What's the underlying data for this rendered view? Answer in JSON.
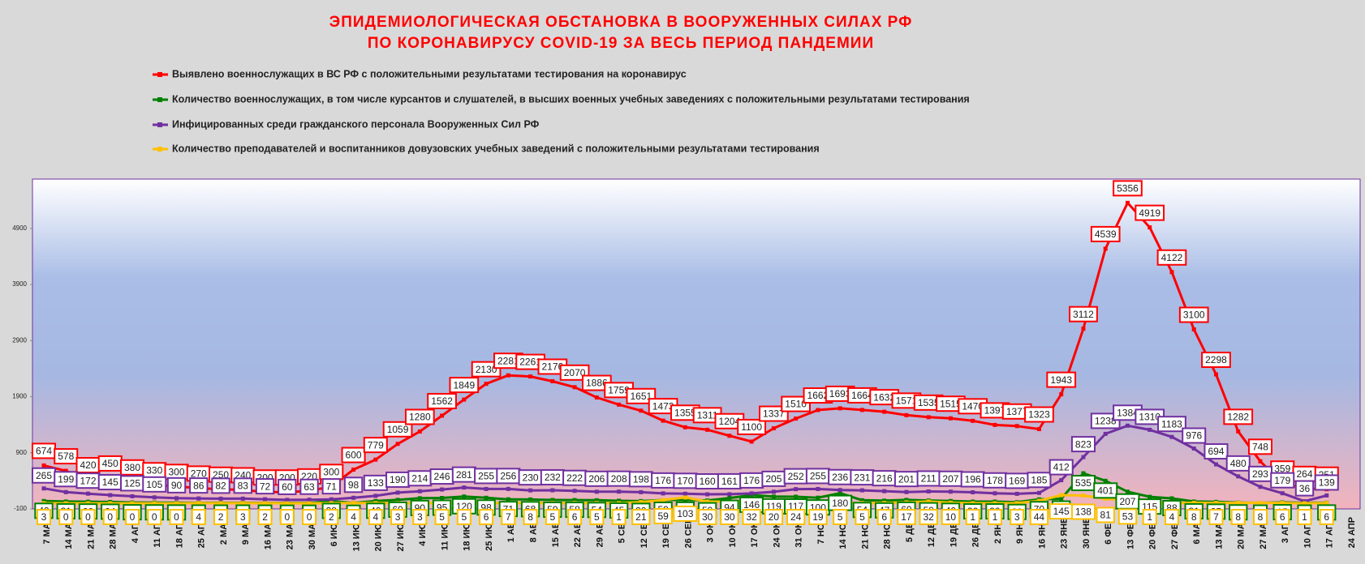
{
  "chart_data": {
    "type": "line",
    "title": [
      "ЭПИДЕМИОЛОГИЧЕСКАЯ ОБСТАНОВКА В ВООРУЖЕННЫХ СИЛАХ РФ",
      "ПО КОРОНАВИРУСУ COVID-19 ЗА ВЕСЬ ПЕРИОД ПАНДЕМИИ"
    ],
    "categories": [
      "7 МАР",
      "14 МАР",
      "21 МАР",
      "28 МАР",
      "4 АПР",
      "11 АПР",
      "18 АПР",
      "25 АПР",
      "2 МАЙ",
      "9 МАЙ",
      "16 МАЙ",
      "23 МАЙ",
      "30 МАЙ",
      "6 ИЮН",
      "13 ИЮН",
      "20 ИЮН",
      "27 ИЮН",
      "4 ИЮЛ",
      "11 ИЮЛ",
      "18 ИЮЛ",
      "25 ИЮЛ",
      "1 АВГ",
      "8 АВГ",
      "15 АВГ",
      "22 АВГ",
      "29 АВГ",
      "5 СЕН",
      "12 СЕН",
      "19 СЕН",
      "26 СЕН",
      "3 ОКТ",
      "10 ОКТ",
      "17 ОКТ",
      "24 ОКТ",
      "31 ОКТ",
      "7 НОЯ",
      "14 НОЯ",
      "21 НОЯ",
      "28 НОЯ",
      "5 ДЕК",
      "12 ДЕК",
      "19 ДЕК",
      "26 ДЕК",
      "2 ЯНВ",
      "9 ЯНВ",
      "16 ЯНВ",
      "23 ЯНВ",
      "30 ЯНВ",
      "6 ФЕВ",
      "13 ФЕВ",
      "20 ФЕВ",
      "27 ФЕВ",
      "6 МАР",
      "13 МАР",
      "20 МАР",
      "27 МАР",
      "3 АПР",
      "10 АПР",
      "17 АПР",
      "24 АПР"
    ],
    "series": [
      {
        "name": "Выявлено военнослужащих в ВС РФ с положительными результатами тестирования на коронавирус",
        "color": "#ff0000",
        "values": [
          674,
          578,
          420,
          450,
          380,
          330,
          300,
          270,
          250,
          240,
          200,
          200,
          220,
          300,
          600,
          779,
          1059,
          1280,
          1562,
          1849,
          2130,
          2281,
          2261,
          2176,
          2070,
          1886,
          1759,
          1651,
          1473,
          1355,
          1311,
          1204,
          1100,
          1337,
          1510,
          1662,
          1693,
          1664,
          1632,
          1571,
          1535,
          1515,
          1470,
          1397,
          1377,
          1323,
          1943,
          3112,
          4539,
          5356,
          4919,
          4122,
          3100,
          2298,
          1282,
          748,
          359,
          264,
          251,
          null
        ]
      },
      {
        "name": "Количество военнослужащих, в том числе курсантов и слушателей, в высших военных учебных заведениях с положительными результатами тестирования",
        "color": "#008000",
        "values": [
          40,
          31,
          28,
          24,
          14,
          12,
          10,
          9,
          8,
          8,
          7,
          6,
          6,
          38,
          5,
          40,
          60,
          90,
          95,
          120,
          98,
          71,
          68,
          59,
          58,
          54,
          45,
          39,
          59,
          61,
          50,
          94,
          146,
          119,
          117,
          100,
          180,
          54,
          47,
          60,
          50,
          40,
          30,
          30,
          20,
          70,
          80,
          535,
          401,
          207,
          115,
          88,
          31,
          25,
          12,
          8,
          15,
          8,
          10,
          null
        ]
      },
      {
        "name": "Инфицированных среди гражданского персонала Вооруженных Сил РФ",
        "color": "#7030a0",
        "values": [
          265,
          199,
          172,
          145,
          125,
          105,
          90,
          86,
          82,
          83,
          72,
          60,
          63,
          71,
          98,
          133,
          190,
          214,
          246,
          281,
          255,
          256,
          230,
          232,
          222,
          206,
          208,
          198,
          176,
          170,
          160,
          161,
          176,
          205,
          252,
          255,
          236,
          231,
          216,
          201,
          211,
          207,
          196,
          178,
          169,
          185,
          412,
          823,
          1238,
          1384,
          1310,
          1183,
          976,
          694,
          480,
          293,
          179,
          36,
          139,
          null
        ]
      },
      {
        "name": "Количество преподавателей и воспитанников довузовских учебных заведений с положительными результатами тестирования",
        "color": "#ffc000",
        "values": [
          3,
          0,
          0,
          0,
          0,
          0,
          0,
          4,
          2,
          3,
          2,
          0,
          0,
          2,
          4,
          4,
          3,
          3,
          5,
          5,
          6,
          7,
          8,
          5,
          6,
          5,
          1,
          21,
          59,
          103,
          30,
          30,
          32,
          20,
          24,
          19,
          5,
          5,
          6,
          17,
          32,
          10,
          1,
          1,
          3,
          44,
          145,
          138,
          81,
          53,
          1,
          4,
          8,
          7,
          8,
          8,
          6,
          1,
          6,
          null
        ]
      }
    ],
    "ylim": [
      -100,
      5780
    ],
    "yticks": [
      -100,
      900,
      1900,
      2900,
      3900,
      4900
    ]
  }
}
